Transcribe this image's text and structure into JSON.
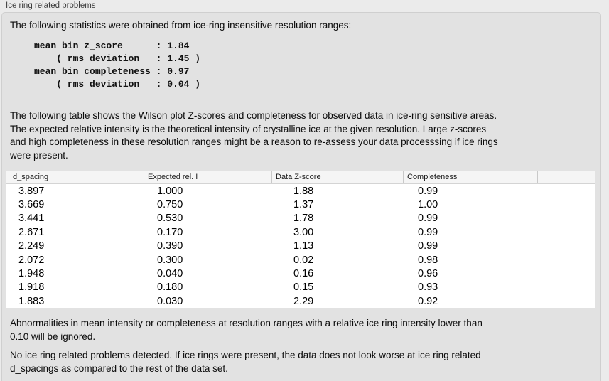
{
  "panel": {
    "title": "Ice ring related problems"
  },
  "stats": {
    "intro": "The following statistics were obtained from ice-ring insensitive resolution ranges:",
    "block": "mean bin z_score      : 1.84\n    ( rms deviation   : 1.45 )\nmean bin completeness : 0.97\n    ( rms deviation   : 0.04 )",
    "mean_bin_z_score": 1.84,
    "z_score_rms_deviation": 1.45,
    "mean_bin_completeness": 0.97,
    "completeness_rms_deviation": 0.04
  },
  "table_intro": "The following table shows the Wilson plot Z-scores and completeness for observed data in ice-ring sensitive areas.\nThe expected relative intensity is the theoretical intensity of crystalline ice at the given resolution. Large z-scores\nand high completeness in these resolution ranges might be a reason to re-assess your data processsing if ice rings\nwere present.",
  "table": {
    "columns": [
      "d_spacing",
      "Expected rel. I",
      "Data Z-score",
      "Completeness"
    ],
    "rows": [
      [
        "3.897",
        "1.000",
        "1.88",
        "0.99"
      ],
      [
        "3.669",
        "0.750",
        "1.37",
        "1.00"
      ],
      [
        "3.441",
        "0.530",
        "1.78",
        "0.99"
      ],
      [
        "2.671",
        "0.170",
        "3.00",
        "0.99"
      ],
      [
        "2.249",
        "0.390",
        "1.13",
        "0.99"
      ],
      [
        "2.072",
        "0.300",
        "0.02",
        "0.98"
      ],
      [
        "1.948",
        "0.040",
        "0.16",
        "0.96"
      ],
      [
        "1.918",
        "0.180",
        "0.15",
        "0.93"
      ],
      [
        "1.883",
        "0.030",
        "2.29",
        "0.92"
      ]
    ]
  },
  "ignore_note": "Abnormalities in mean intensity or completeness at resolution ranges with a relative ice ring intensity lower than\n0.10 will be ignored.",
  "conclusion": "No ice ring related problems detected. If ice rings were present, the data does not look worse at ice ring related\nd_spacings as compared to the rest of the data set.",
  "colors": {
    "page_background": "#ebebeb",
    "groupbox_background": "#e2e2e2",
    "groupbox_border": "#cfcfcf",
    "table_border": "#8f8f8f",
    "table_header_background": "#f5f5f5",
    "table_body_background": "#ffffff",
    "text": "#0b0b0b"
  }
}
